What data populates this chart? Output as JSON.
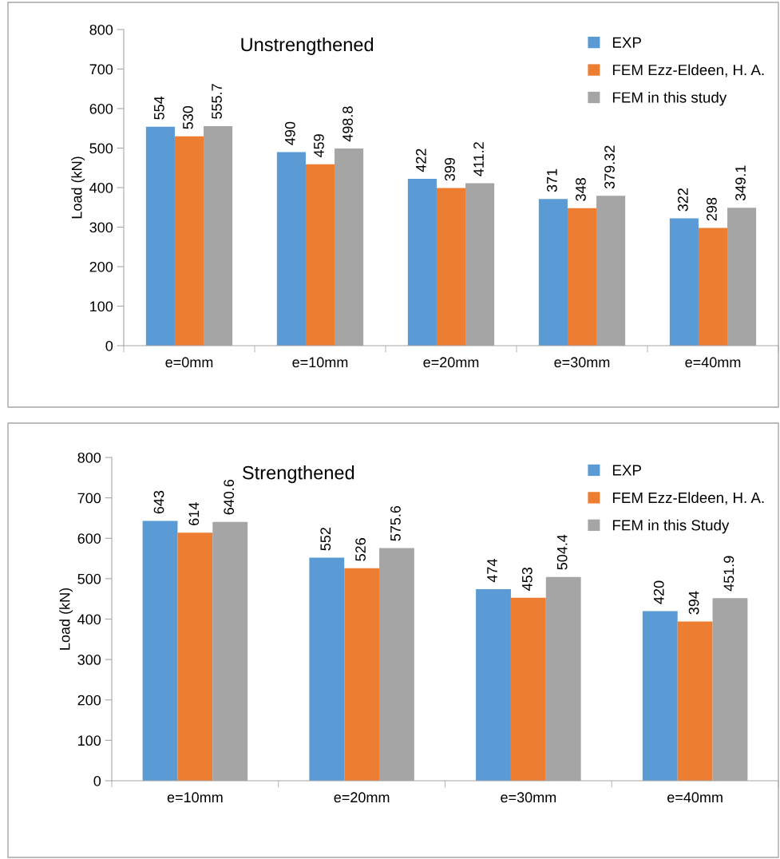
{
  "chart_data": [
    {
      "type": "bar",
      "title": "Unstrengthened",
      "ylabel": "Load (kN)",
      "categories": [
        "e=0mm",
        "e=10mm",
        "e=20mm",
        "e=30mm",
        "e=40mm"
      ],
      "series": [
        {
          "name": "EXP",
          "color": "#5b9bd5",
          "values": [
            554,
            490,
            422,
            371,
            322
          ]
        },
        {
          "name": "FEM Ezz-Eldeen, H. A.",
          "color": "#ed7d31",
          "values": [
            530,
            459,
            399,
            348,
            298
          ]
        },
        {
          "name": "FEM in this study",
          "color": "#a5a5a5",
          "values": [
            555.7,
            498.8,
            411.2,
            379.32,
            349.1
          ]
        }
      ],
      "ylim": [
        0,
        800
      ],
      "yticks": [
        0,
        100,
        200,
        300,
        400,
        500,
        600,
        700,
        800
      ],
      "grid": false,
      "legend": "top right",
      "data_labels": true
    },
    {
      "type": "bar",
      "title": "Strengthened",
      "ylabel": "Load (kN)",
      "categories": [
        "e=10mm",
        "e=20mm",
        "e=30mm",
        "e=40mm"
      ],
      "series": [
        {
          "name": "EXP",
          "color": "#5b9bd5",
          "values": [
            643,
            552,
            474,
            420
          ]
        },
        {
          "name": "FEM Ezz-Eldeen, H. A.",
          "color": "#ed7d31",
          "values": [
            614,
            526,
            453,
            394
          ]
        },
        {
          "name": "FEM in this Study",
          "color": "#a5a5a5",
          "values": [
            640.6,
            575.6,
            504.4,
            451.9
          ]
        }
      ],
      "ylim": [
        0,
        800
      ],
      "yticks": [
        0,
        100,
        200,
        300,
        400,
        500,
        600,
        700,
        800
      ],
      "grid": false,
      "legend": "top right",
      "data_labels": true
    }
  ]
}
